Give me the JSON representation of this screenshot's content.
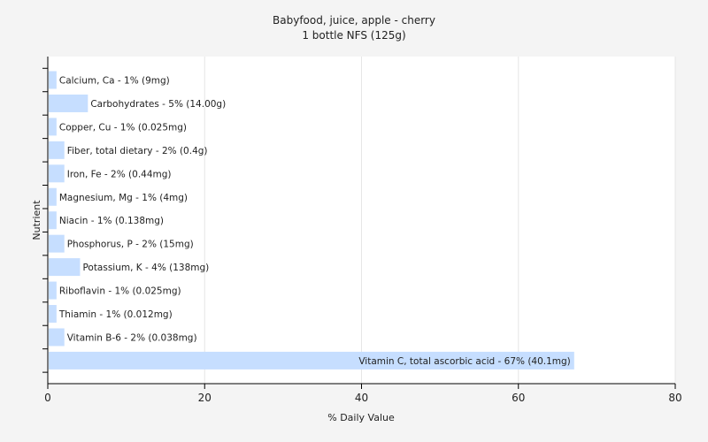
{
  "chart_data": {
    "type": "bar",
    "orientation": "horizontal",
    "title": "Babyfood, juice, apple - cherry",
    "subtitle": "1 bottle NFS (125g)",
    "xlabel": "% Daily Value",
    "ylabel": "Nutrient",
    "xlim": [
      0,
      80
    ],
    "xticks": [
      0,
      20,
      40,
      60,
      80
    ],
    "grid": true,
    "bar_color": "#c6deff",
    "bars": [
      {
        "label": "Calcium, Ca - 1% (9mg)",
        "value": 1
      },
      {
        "label": "Carbohydrates - 5% (14.00g)",
        "value": 5
      },
      {
        "label": "Copper, Cu - 1% (0.025mg)",
        "value": 1
      },
      {
        "label": "Fiber, total dietary - 2% (0.4g)",
        "value": 2
      },
      {
        "label": "Iron, Fe - 2% (0.44mg)",
        "value": 2
      },
      {
        "label": "Magnesium, Mg - 1% (4mg)",
        "value": 1
      },
      {
        "label": "Niacin - 1% (0.138mg)",
        "value": 1
      },
      {
        "label": "Phosphorus, P - 2% (15mg)",
        "value": 2
      },
      {
        "label": "Potassium, K - 4% (138mg)",
        "value": 4
      },
      {
        "label": "Riboflavin - 1% (0.025mg)",
        "value": 1
      },
      {
        "label": "Thiamin - 1% (0.012mg)",
        "value": 1
      },
      {
        "label": "Vitamin B-6 - 2% (0.038mg)",
        "value": 2
      },
      {
        "label": "Vitamin C, total ascorbic acid - 67% (40.1mg)",
        "value": 67
      }
    ]
  }
}
